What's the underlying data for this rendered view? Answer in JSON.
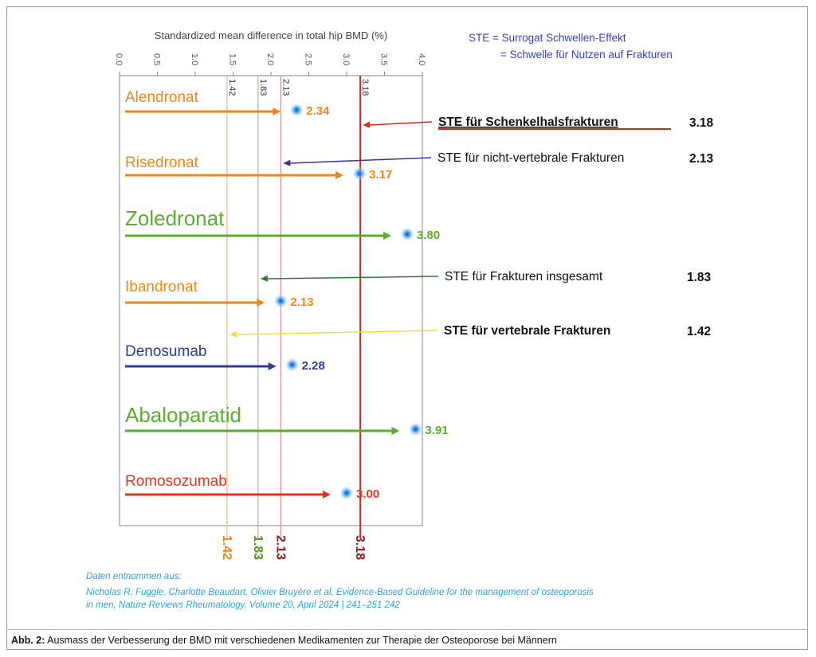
{
  "chart_data": {
    "type": "bar",
    "title": "Standardized mean difference in total hip BMD (%)",
    "xlim": [
      0,
      4
    ],
    "ticks": [
      "0.0",
      "0.5",
      "1.0",
      "1.5",
      "2.0",
      "2.5",
      "3.0",
      "3.5",
      "4.0"
    ],
    "categories": [
      "Alendronat",
      "Risedronat",
      "Zoledronat",
      "Ibandronat",
      "Denosumab",
      "Abaloparatid",
      "Romosozumab"
    ],
    "values": [
      2.34,
      3.17,
      3.8,
      2.13,
      2.28,
      3.91,
      3.0
    ],
    "value_labels": [
      "2.34",
      "3.17",
      "3.80",
      "2.13",
      "2.28",
      "3.91",
      "3.00"
    ],
    "colors": [
      "#f0861a",
      "#f0861a",
      "#5aae2e",
      "#f0861a",
      "#2b3d98",
      "#5aae2e",
      "#e8321e"
    ],
    "thresholds": [
      {
        "value": 1.42,
        "label": "1.42",
        "color": "#f0861a",
        "line": "#e8c6a8",
        "text": "STE für vertebrale Frakturen",
        "bold": true,
        "underline": false,
        "arrow": "#e8e040"
      },
      {
        "value": 1.83,
        "label": "1.83",
        "color": "#4e9a22",
        "line": "#c9bfa0",
        "text": "STE für Frakturen insgesamt",
        "bold": false,
        "underline": false,
        "arrow": "#2e7d32"
      },
      {
        "value": 2.13,
        "label": "2.13",
        "color": "#8b1a1a",
        "line": "#d8a0a0",
        "text": "STE für nicht-vertebrale Frakturen",
        "bold": false,
        "underline": false,
        "arrow": "#4b2a9a"
      },
      {
        "value": 3.18,
        "label": "3.18",
        "color": "#a01818",
        "line": "#e8201a",
        "text": "STE für Schenkelhalsfrakturen",
        "bold": true,
        "underline": true,
        "arrow": "#e8201a"
      }
    ],
    "legend": [
      "STE = Surrogat Schwellen-Effekt",
      "= Schwelle für Nutzen auf Frakturen"
    ]
  },
  "source": {
    "intro": "Daten entnommen aus:",
    "line1": "Nicholas R. Fuggle, Charlotte Beaudart, Olivier Bruyère et al.  Evidence-Based Guideline for the management of osteoporosis",
    "line2": "in men, Nature Reviews Rheumatology, Volume 20, April 2024 | 241–251 242"
  },
  "caption": {
    "label": "Abb. 2:",
    "text": " Ausmass der Verbesserung der BMD mit verschiedenen Medikamenten zur Therapie der Osteoporose bei Männern"
  }
}
